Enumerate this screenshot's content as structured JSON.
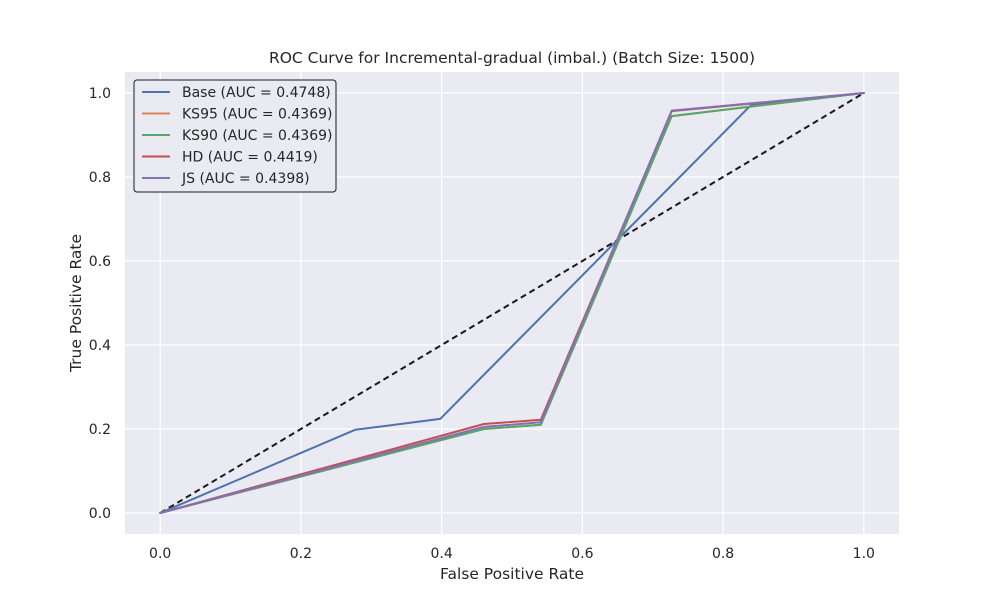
{
  "chart_data": {
    "type": "line",
    "title": "ROC Curve for Incremental-gradual (imbal.) (Batch Size: 1500)",
    "xlabel": "False Positive Rate",
    "ylabel": "True Positive Rate",
    "xlim": [
      -0.05,
      1.05
    ],
    "ylim": [
      -0.05,
      1.05
    ],
    "xticks": [
      0.0,
      0.2,
      0.4,
      0.6,
      0.8,
      1.0
    ],
    "yticks": [
      0.0,
      0.2,
      0.4,
      0.6,
      0.8,
      1.0
    ],
    "xtick_labels": [
      "0.0",
      "0.2",
      "0.4",
      "0.6",
      "0.8",
      "1.0"
    ],
    "ytick_labels": [
      "0.0",
      "0.2",
      "0.4",
      "0.6",
      "0.8",
      "1.0"
    ],
    "grid": true,
    "legend_position": "top-left",
    "background": "#eaeaf2",
    "series": [
      {
        "name": "Base (AUC = 0.4748)",
        "color": "#4c72b0",
        "x": [
          0.0,
          0.277,
          0.398,
          0.839,
          1.0
        ],
        "y": [
          0.0,
          0.198,
          0.224,
          0.97,
          1.0
        ]
      },
      {
        "name": "KS95 (AUC = 0.4369)",
        "color": "#dd8452",
        "x": [
          0.0,
          0.46,
          0.541,
          0.727,
          1.0
        ],
        "y": [
          0.0,
          0.2,
          0.21,
          0.945,
          1.0
        ]
      },
      {
        "name": "KS90 (AUC = 0.4369)",
        "color": "#55a868",
        "x": [
          0.0,
          0.46,
          0.541,
          0.727,
          1.0
        ],
        "y": [
          0.0,
          0.2,
          0.21,
          0.945,
          1.0
        ]
      },
      {
        "name": "HD (AUC = 0.4419)",
        "color": "#c44e52",
        "x": [
          0.0,
          0.46,
          0.541,
          0.727,
          1.0
        ],
        "y": [
          0.0,
          0.212,
          0.222,
          0.957,
          1.0
        ]
      },
      {
        "name": "JS (AUC = 0.4398)",
        "color": "#8172b3",
        "x": [
          0.0,
          0.46,
          0.541,
          0.727,
          1.0
        ],
        "y": [
          0.0,
          0.205,
          0.216,
          0.958,
          1.0
        ]
      }
    ],
    "reference_line": {
      "x": [
        0.0,
        1.0
      ],
      "y": [
        0.0,
        1.0
      ],
      "color": "#1a1a1a",
      "style": "dashed"
    }
  }
}
